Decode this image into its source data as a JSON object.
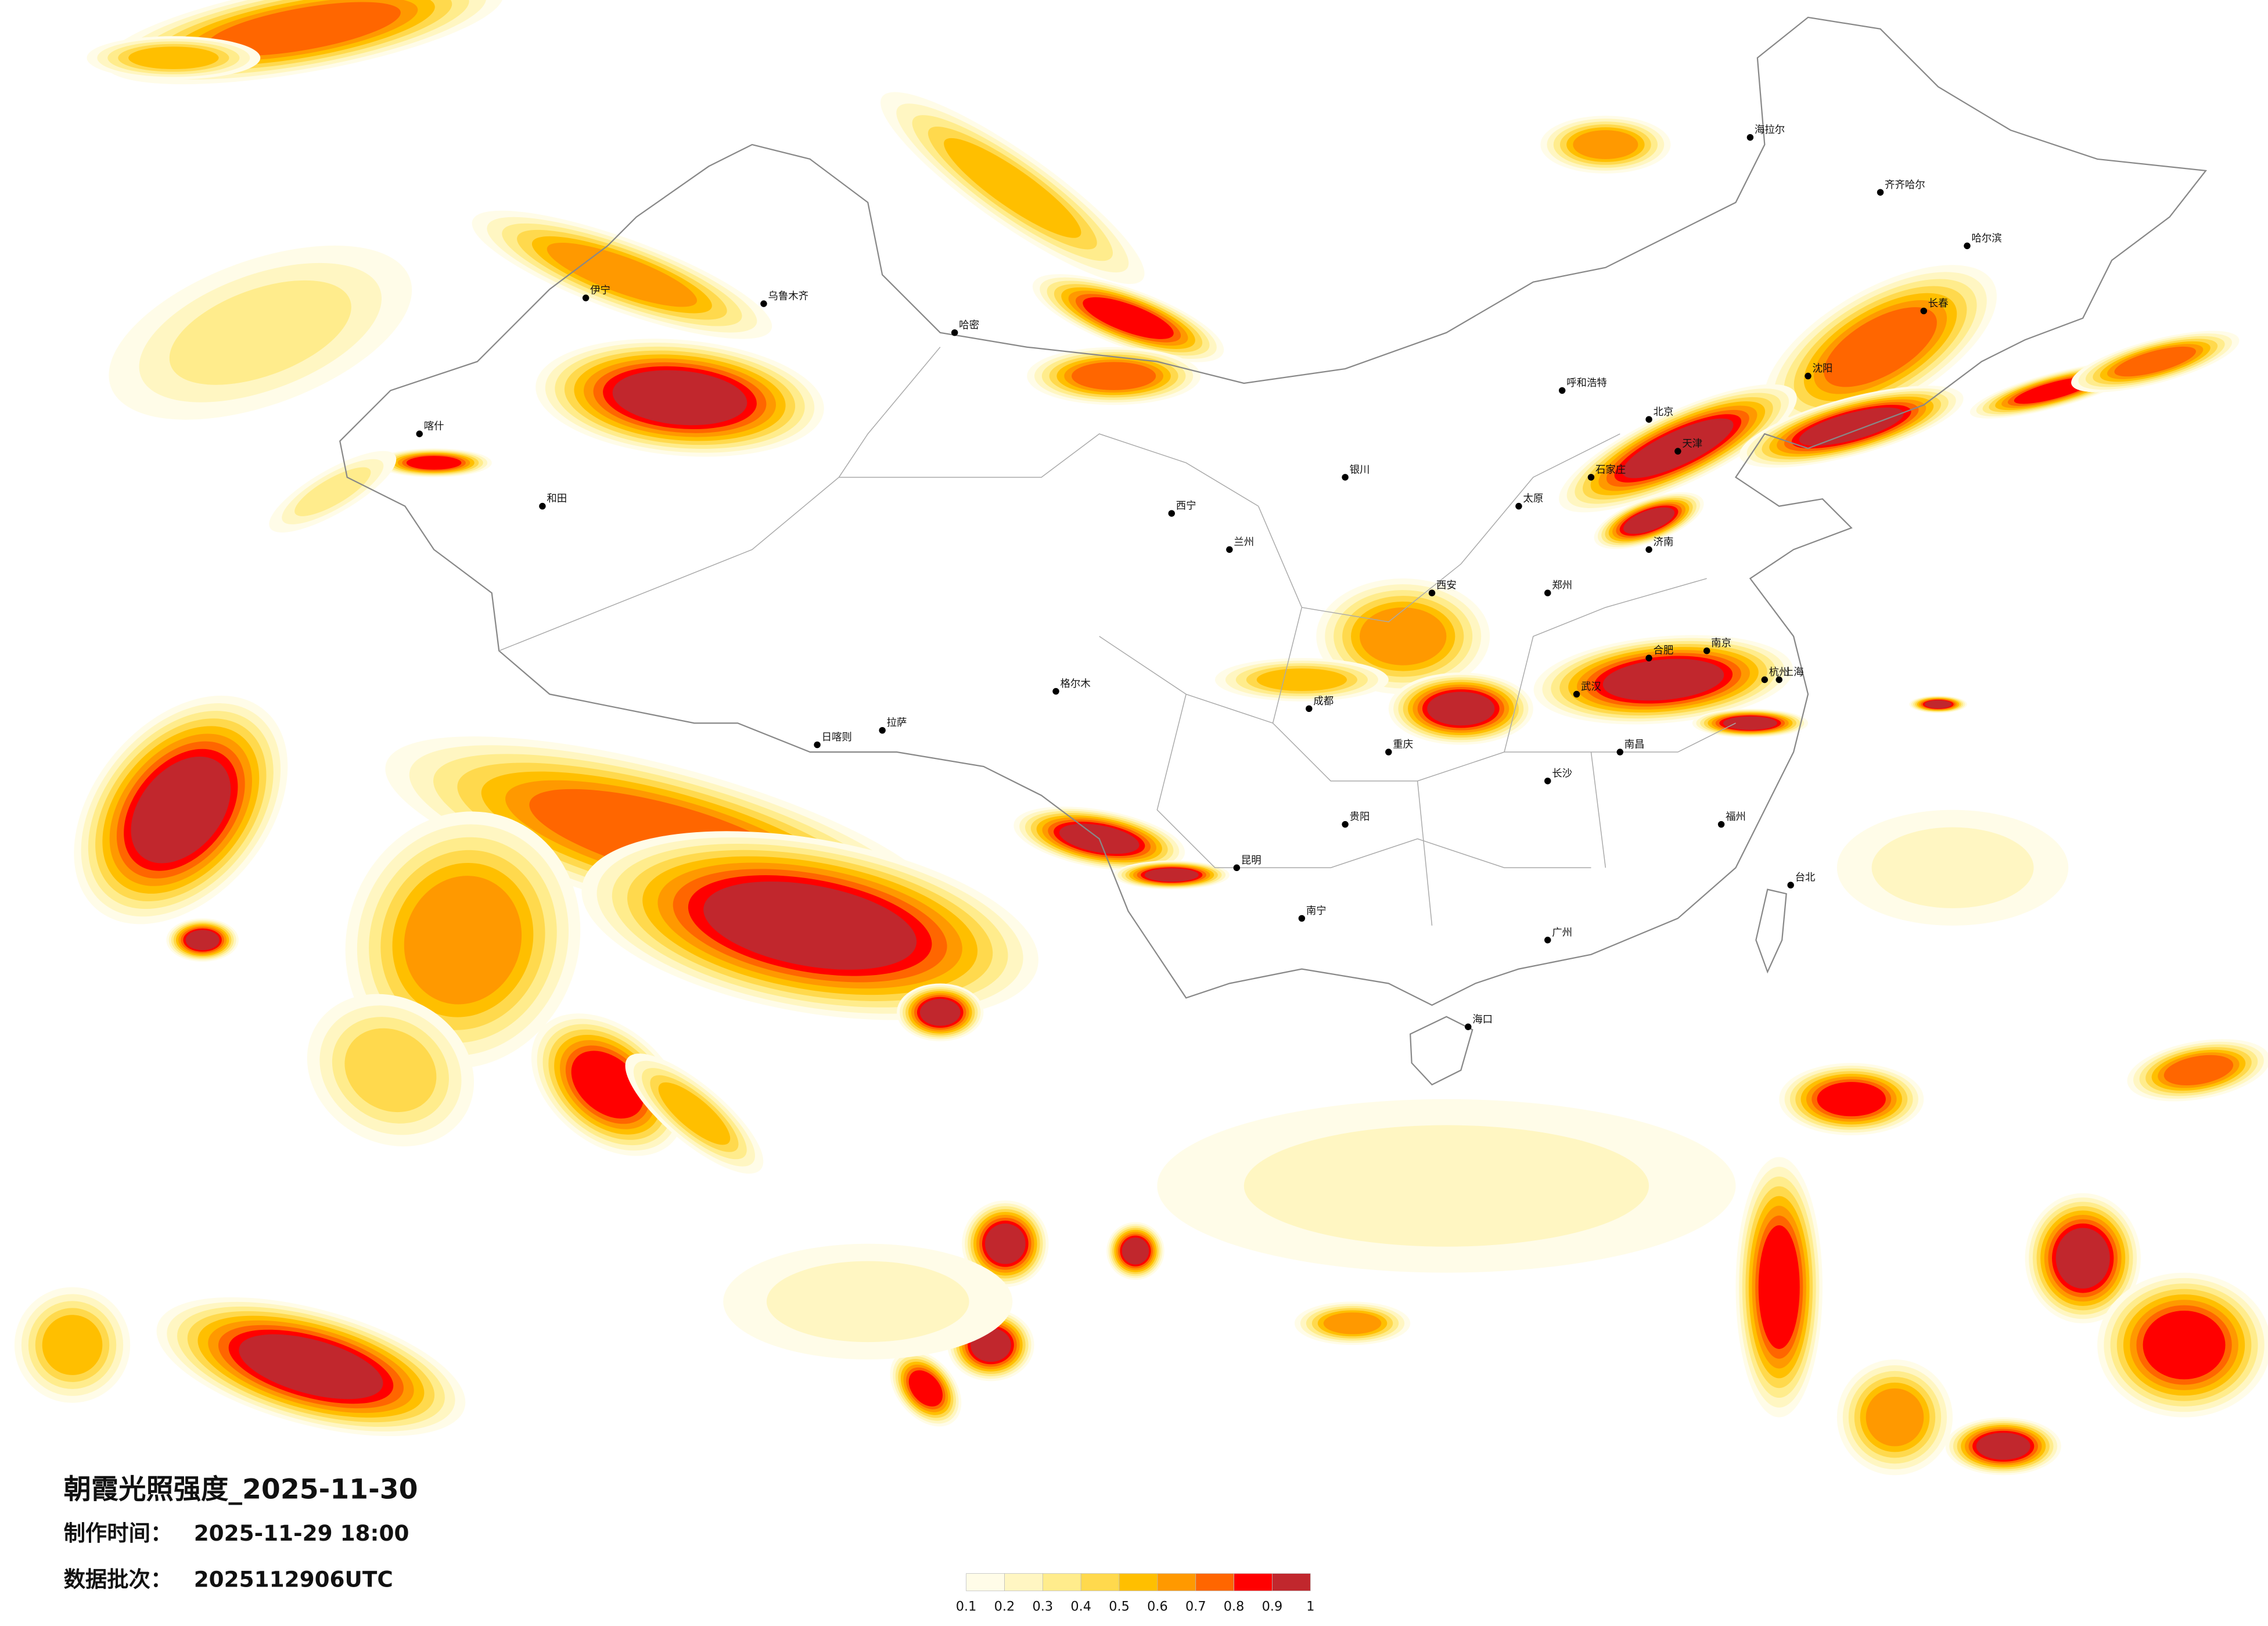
{
  "header": {
    "title": "朝霞光照强度_2025-11-30",
    "made_time_label": "制作时间：",
    "made_time": "2025-11-29 18:00",
    "batch_label": "数据批次：",
    "batch": "2025112906UTC"
  },
  "colorbar": {
    "colors": [
      "#fffce8",
      "#fff6c2",
      "#ffec8c",
      "#ffd94d",
      "#ffbf00",
      "#ff9900",
      "#ff6600",
      "#ff0000",
      "#c1272d"
    ],
    "ticks": [
      0.1,
      0.2,
      0.3,
      0.4,
      0.5,
      0.6,
      0.7,
      0.8,
      0.9,
      1
    ]
  },
  "cities": [
    "北京",
    "天津",
    "上海",
    "武汉",
    "广州",
    "成都",
    "重庆",
    "拉萨",
    "乌鲁木齐",
    "哈尔滨",
    "西安",
    "兰州",
    "昆明",
    "呼和浩特",
    "南京",
    "郑州",
    "长沙",
    "海口",
    "喀什",
    "和田",
    "哈密",
    "海拉尔",
    "台北",
    "贵阳",
    "南宁",
    "西宁",
    "银川",
    "沈阳",
    "长春",
    "济南",
    "福州",
    "杭州",
    "合肥",
    "南昌",
    "太原",
    "石家庄",
    "伊宁",
    "日喀则",
    "格尔木",
    "齐齐哈尔"
  ]
}
